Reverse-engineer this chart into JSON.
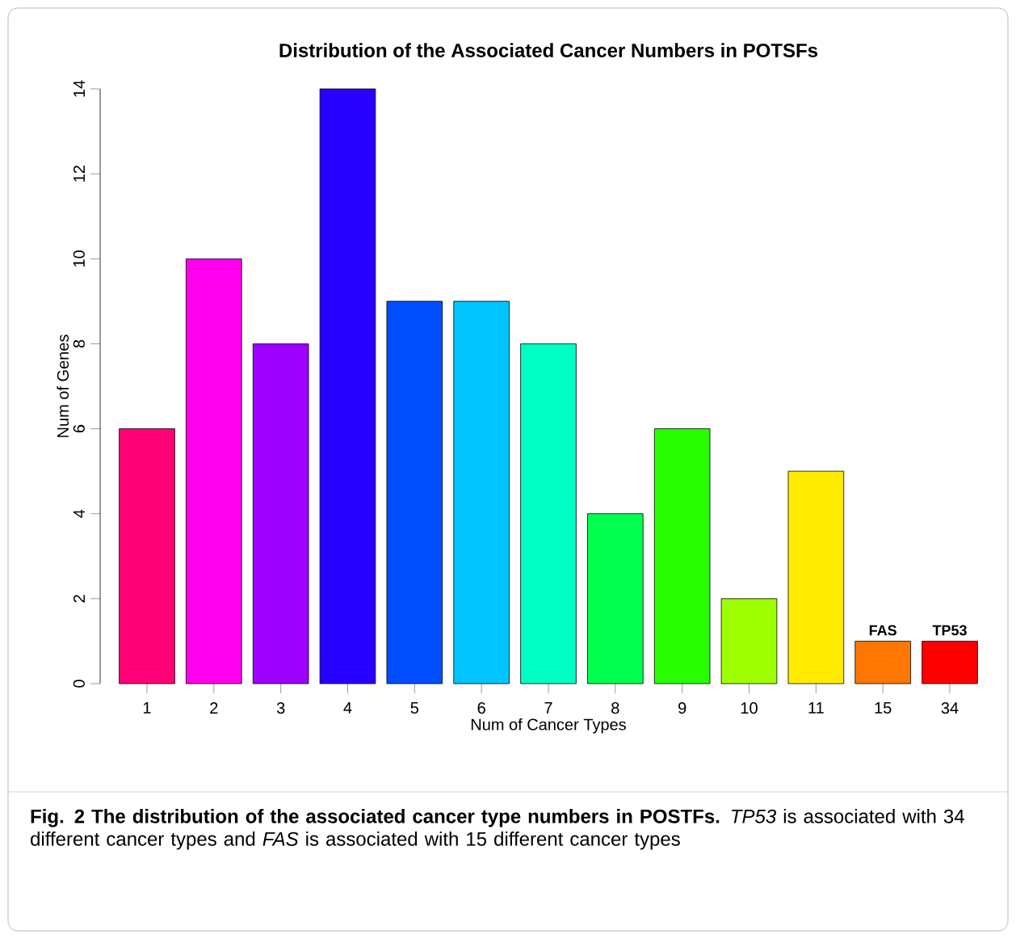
{
  "chart_data": {
    "type": "bar",
    "title": "Distribution of the Associated Cancer Numbers in POTSFs",
    "xlabel": "Num of Cancer Types",
    "ylabel": "Num of Genes",
    "categories": [
      "1",
      "2",
      "3",
      "4",
      "5",
      "6",
      "7",
      "8",
      "9",
      "10",
      "11",
      "15",
      "34"
    ],
    "values": [
      6,
      10,
      8,
      14,
      9,
      9,
      8,
      4,
      6,
      2,
      5,
      1,
      1
    ],
    "colors": [
      "#ff0076",
      "#ff00ec",
      "#9d00ff",
      "#2700ff",
      "#004eff",
      "#00c4ff",
      "#00ffc4",
      "#00ff4e",
      "#27ff00",
      "#9dff00",
      "#ffec00",
      "#ff7600",
      "#ff0000"
    ],
    "value_labels": [
      null,
      null,
      null,
      null,
      null,
      null,
      null,
      null,
      null,
      null,
      null,
      "FAS",
      "TP53"
    ],
    "ylim": [
      0,
      14
    ],
    "yticks": [
      0,
      2,
      4,
      6,
      8,
      10,
      12,
      14
    ],
    "annotations": [
      "**Fig. 2 The distribution of the associated cancer type numbers in POSTFs.** *TP53* is associated with 34 different cancer types and *FAS* is associated with 15 different cancer types"
    ]
  }
}
